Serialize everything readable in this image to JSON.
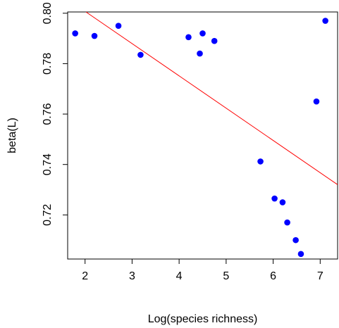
{
  "chart_data": {
    "type": "scatter",
    "xlabel": "Log(species richness)",
    "ylabel": "beta(L)",
    "xlim": [
      1.63,
      7.37
    ],
    "ylim": [
      0.7025,
      0.8005
    ],
    "x_ticks": [
      2,
      3,
      4,
      5,
      6,
      7
    ],
    "y_ticks": [
      0.72,
      0.74,
      0.76,
      0.78,
      0.8
    ],
    "y_tick_labels": [
      "0.72",
      "0.74",
      "0.76",
      "0.78",
      "0.80"
    ],
    "grid": false,
    "legend": "none",
    "points": [
      {
        "x": 1.79,
        "y": 0.792
      },
      {
        "x": 2.2,
        "y": 0.791
      },
      {
        "x": 2.71,
        "y": 0.795
      },
      {
        "x": 3.18,
        "y": 0.7835
      },
      {
        "x": 4.2,
        "y": 0.7905
      },
      {
        "x": 4.44,
        "y": 0.784
      },
      {
        "x": 4.5,
        "y": 0.792
      },
      {
        "x": 4.75,
        "y": 0.789
      },
      {
        "x": 5.73,
        "y": 0.7412
      },
      {
        "x": 6.03,
        "y": 0.7265
      },
      {
        "x": 6.2,
        "y": 0.725
      },
      {
        "x": 6.3,
        "y": 0.717
      },
      {
        "x": 6.48,
        "y": 0.71
      },
      {
        "x": 6.59,
        "y": 0.7045
      },
      {
        "x": 6.92,
        "y": 0.765
      },
      {
        "x": 7.11,
        "y": 0.797
      }
    ],
    "fit_line": {
      "x": [
        2.02,
        7.37
      ],
      "y": [
        0.8005,
        0.732
      ]
    },
    "point_color": "#0000ff",
    "line_color": "#ff0000"
  }
}
